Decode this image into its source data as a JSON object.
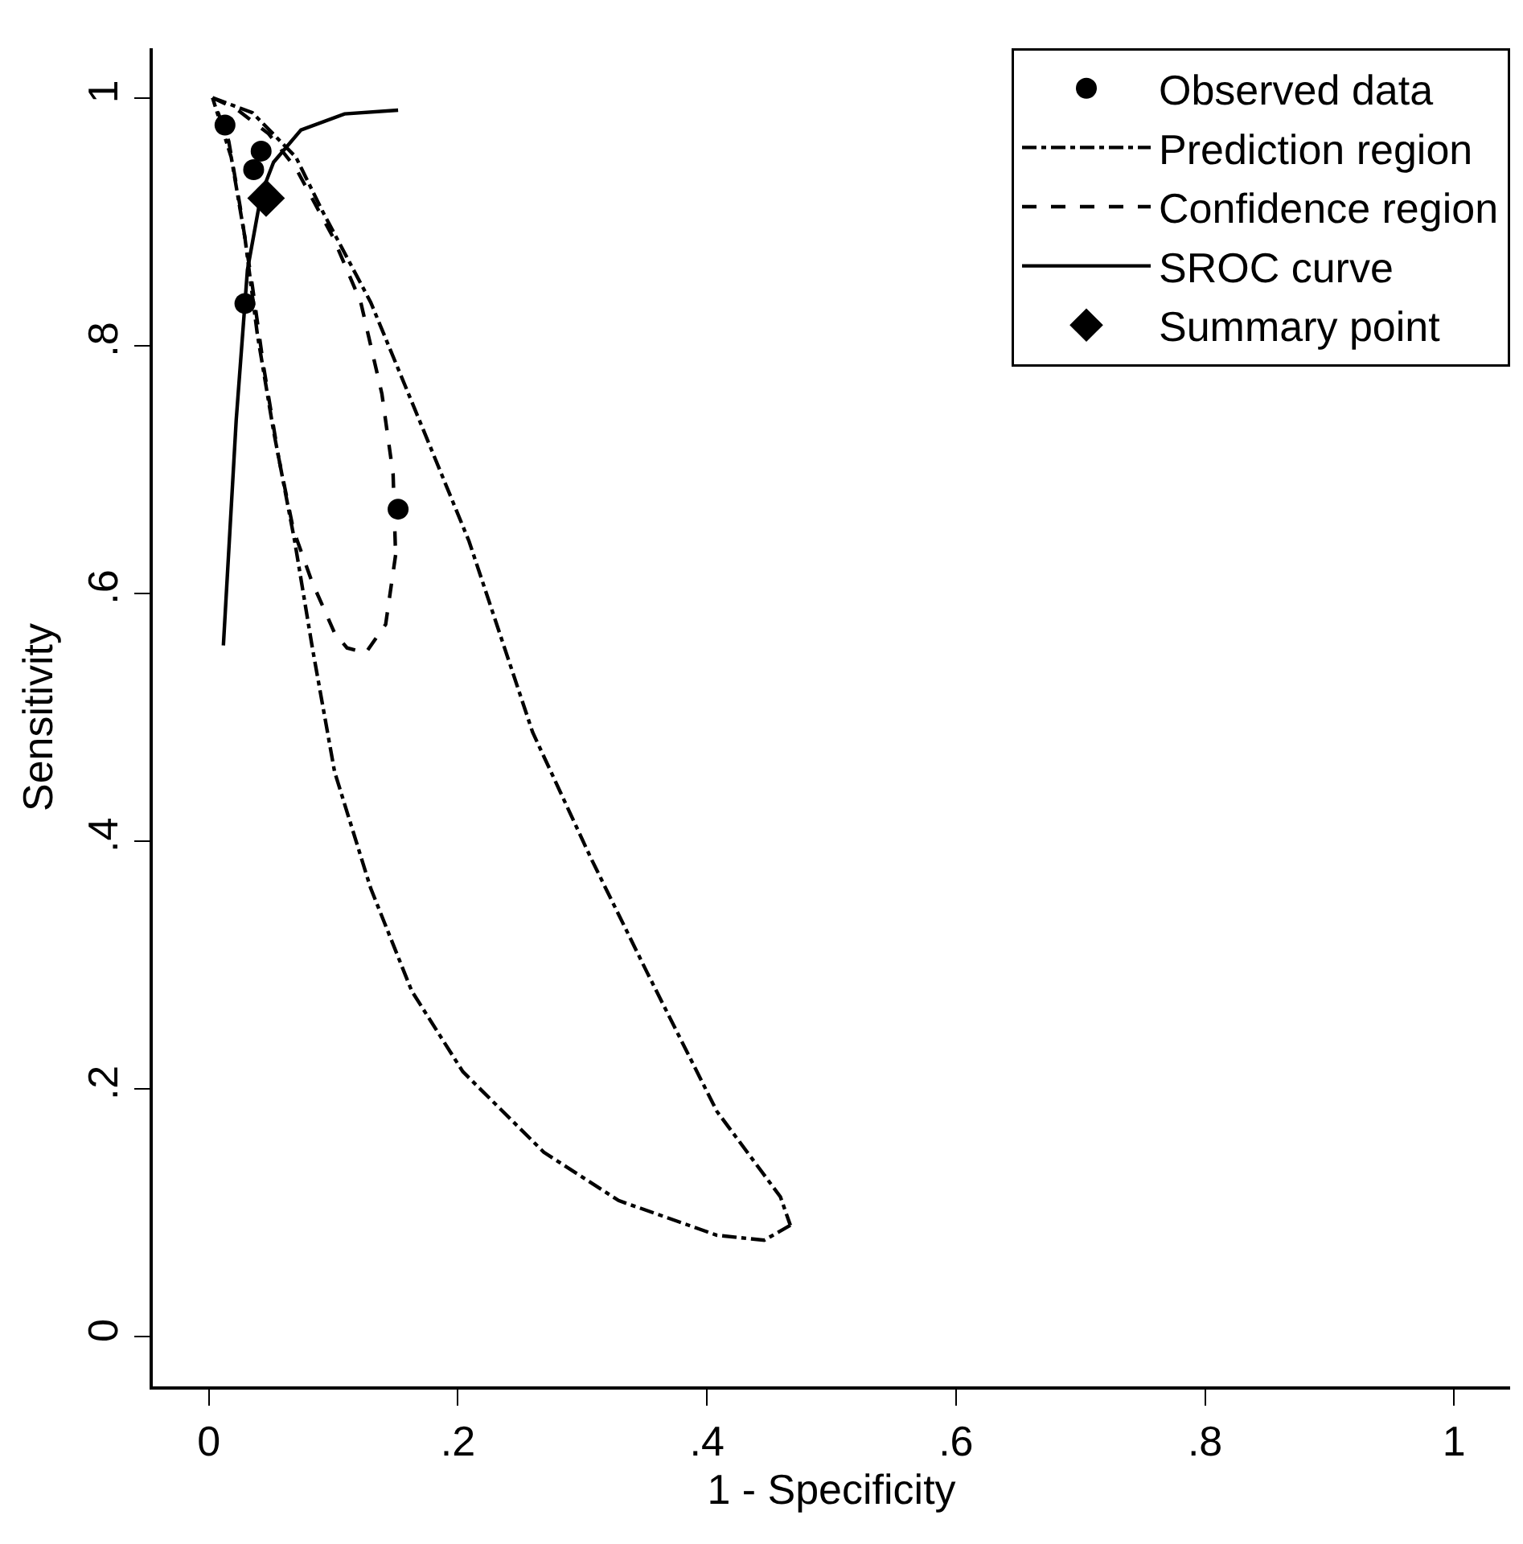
{
  "chart_data": {
    "type": "scatter",
    "xlabel": "1 - Specificity",
    "ylabel": "Sensitivity",
    "xlim": [
      -0.045,
      1.045
    ],
    "ylim": [
      -0.04,
      1.04
    ],
    "xticks": [
      0,
      {
        "value": 0.2,
        "label": ".2"
      },
      {
        "value": 0.4,
        "label": ".4"
      },
      {
        "value": 0.6,
        "label": ".6"
      },
      {
        "value": 0.8,
        "label": ".8"
      },
      1
    ],
    "yticks": [
      0,
      {
        "value": 0.2,
        "label": ".2"
      },
      {
        "value": 0.4,
        "label": ".4"
      },
      {
        "value": 0.6,
        "label": ".6"
      },
      {
        "value": 0.8,
        "label": ".8"
      },
      1
    ],
    "legend": "top right",
    "series": [
      {
        "name": "Observed data",
        "marker": "circle",
        "color": "#000000",
        "x": [
          0.013,
          0.042,
          0.036,
          0.029,
          0.152
        ],
        "values": [
          0.978,
          0.957,
          0.942,
          0.834,
          0.668
        ]
      },
      {
        "name": "Prediction region",
        "type": "line",
        "marker": "none",
        "line_style": "dashdot",
        "color": "#000000",
        "x": [
          0.003,
          0.035,
          0.07,
          0.091,
          0.13,
          0.169,
          0.209,
          0.26,
          0.307,
          0.352,
          0.408,
          0.459,
          0.467,
          0.446,
          0.408,
          0.329,
          0.269,
          0.204,
          0.163,
          0.13,
          0.101,
          0.083,
          0.069,
          0.052,
          0.039,
          0.029,
          0.018,
          0.003
        ],
        "values": [
          1.0,
          0.988,
          0.952,
          0.909,
          0.835,
          0.74,
          0.642,
          0.488,
          0.386,
          0.294,
          0.182,
          0.113,
          0.09,
          0.078,
          0.082,
          0.11,
          0.149,
          0.214,
          0.279,
          0.362,
          0.456,
          0.557,
          0.642,
          0.731,
          0.809,
          0.887,
          0.952,
          1.0
        ]
      },
      {
        "name": "Confidence region",
        "type": "line",
        "marker": "none",
        "line_style": "dashed",
        "color": "#000000",
        "x": [
          0.003,
          0.022,
          0.048,
          0.07,
          0.1,
          0.122,
          0.139,
          0.148,
          0.15,
          0.142,
          0.126,
          0.111,
          0.101,
          0.083,
          0.068,
          0.056,
          0.044,
          0.035,
          0.025,
          0.016,
          0.003
        ],
        "values": [
          1.0,
          0.991,
          0.971,
          0.943,
          0.887,
          0.835,
          0.761,
          0.696,
          0.631,
          0.575,
          0.552,
          0.556,
          0.568,
          0.609,
          0.651,
          0.71,
          0.783,
          0.848,
          0.913,
          0.965,
          1.0
        ]
      },
      {
        "name": "SROC curve",
        "type": "line",
        "marker": "none",
        "line_style": "solid",
        "color": "#000000",
        "x": [
          0.0117,
          0.022,
          0.031,
          0.042,
          0.052,
          0.074,
          0.109,
          0.152
        ],
        "values": [
          0.558,
          0.74,
          0.861,
          0.922,
          0.948,
          0.974,
          0.987,
          0.99
        ]
      },
      {
        "name": "Summary point",
        "marker": "diamond",
        "color": "#000000",
        "x": [
          0.046
        ],
        "values": [
          0.919
        ]
      }
    ]
  }
}
